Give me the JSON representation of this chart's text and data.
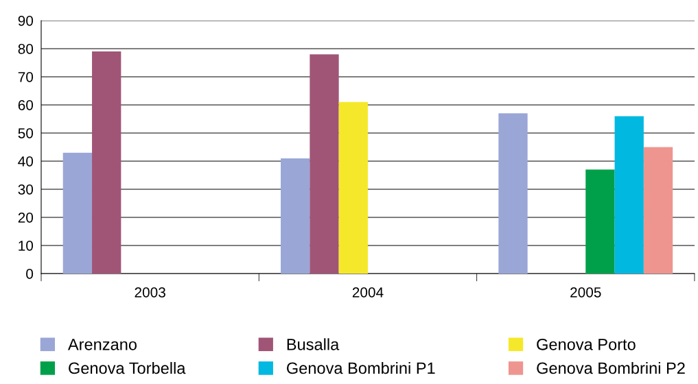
{
  "chart_data": {
    "type": "bar",
    "categories": [
      "2003",
      "2004",
      "2005"
    ],
    "series": [
      {
        "name": "Arenzano",
        "color": "#9aa6d6",
        "values": [
          43,
          41,
          57
        ]
      },
      {
        "name": "Busalla",
        "color": "#a05577",
        "values": [
          79,
          78,
          null
        ]
      },
      {
        "name": "Genova Porto",
        "color": "#f5e82a",
        "values": [
          null,
          61,
          null
        ]
      },
      {
        "name": "Genova Torbella",
        "color": "#00a04a",
        "values": [
          null,
          null,
          37
        ]
      },
      {
        "name": "Genova Bombrini P1",
        "color": "#00b8e0",
        "values": [
          null,
          null,
          56
        ]
      },
      {
        "name": "Genova Bombrini P2",
        "color": "#ee9590",
        "values": [
          null,
          null,
          45
        ]
      }
    ],
    "ylim": [
      0,
      90
    ],
    "yticks": [
      0,
      10,
      20,
      30,
      40,
      50,
      60,
      70,
      80,
      90
    ],
    "grid": "y",
    "legend": "bottom"
  }
}
